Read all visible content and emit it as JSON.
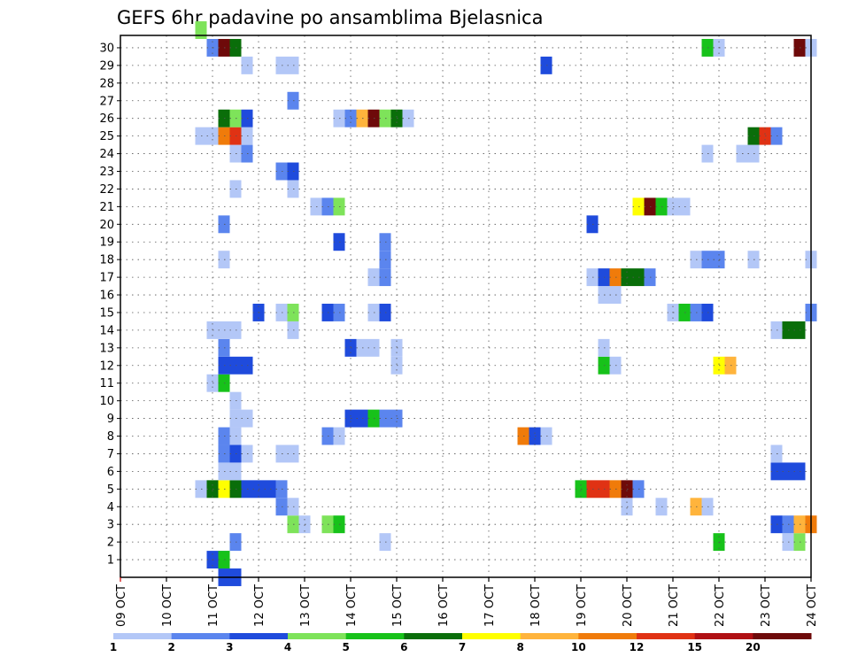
{
  "chart_data": {
    "type": "heatmap",
    "title": "GEFS 6hr padavine po ansamblima Bjelasnica",
    "ylim": [
      0,
      30
    ],
    "y_ticks": [
      1,
      2,
      3,
      4,
      5,
      6,
      7,
      8,
      9,
      10,
      11,
      12,
      13,
      14,
      15,
      16,
      17,
      18,
      19,
      20,
      21,
      22,
      23,
      24,
      25,
      26,
      27,
      28,
      29,
      30
    ],
    "x_ticks": [
      "09 OCT",
      "10 OCT",
      "11 OCT",
      "12 OCT",
      "13 OCT",
      "14 OCT",
      "15 OCT",
      "16 OCT",
      "17 OCT",
      "18 OCT",
      "19 OCT",
      "20 OCT",
      "21 OCT",
      "22 OCT",
      "23 OCT",
      "24 OCT"
    ],
    "x_step_days": 0.25,
    "grid": true,
    "colorbar": {
      "labels": [
        "1",
        "2",
        "3",
        "4",
        "5",
        "6",
        "7",
        "8",
        "10",
        "12",
        "15",
        "20"
      ],
      "colors": [
        "#b3c7f7",
        "#5b85ee",
        "#1f4bdc",
        "#7ee35a",
        "#17c21a",
        "#0a6e0a",
        "#ffff00",
        "#ffb43c",
        "#f07b0a",
        "#e03214",
        "#b01014",
        "#6e0a0a"
      ]
    },
    "cells": [
      {
        "day": 11.25,
        "member": 0,
        "level": 2
      },
      {
        "day": 11.5,
        "member": 0,
        "level": 2
      },
      {
        "day": 11.25,
        "member": 1,
        "level": 1
      },
      {
        "day": 11.0,
        "member": 1,
        "level": 2
      },
      {
        "day": 11.25,
        "member": 1,
        "level": 4
      },
      {
        "day": 11.5,
        "member": 2,
        "level": 1
      },
      {
        "day": 14.75,
        "member": 2,
        "level": 0
      },
      {
        "day": 22.0,
        "member": 2,
        "level": 4
      },
      {
        "day": 23.5,
        "member": 2,
        "level": 0
      },
      {
        "day": 23.75,
        "member": 2,
        "level": 3
      },
      {
        "day": 12.75,
        "member": 3,
        "level": 3
      },
      {
        "day": 13.0,
        "member": 3,
        "level": 0
      },
      {
        "day": 13.5,
        "member": 3,
        "level": 3
      },
      {
        "day": 13.75,
        "member": 3,
        "level": 4
      },
      {
        "day": 23.25,
        "member": 3,
        "level": 2
      },
      {
        "day": 23.5,
        "member": 3,
        "level": 1
      },
      {
        "day": 23.75,
        "member": 3,
        "level": 7
      },
      {
        "day": 24.0,
        "member": 3,
        "level": 8
      },
      {
        "day": 12.5,
        "member": 4,
        "level": 1
      },
      {
        "day": 12.75,
        "member": 4,
        "level": 0
      },
      {
        "day": 20.0,
        "member": 4,
        "level": 0
      },
      {
        "day": 20.75,
        "member": 4,
        "level": 0
      },
      {
        "day": 21.5,
        "member": 4,
        "level": 7
      },
      {
        "day": 21.75,
        "member": 4,
        "level": 0
      },
      {
        "day": 10.75,
        "member": 5,
        "level": 0
      },
      {
        "day": 11.0,
        "member": 5,
        "level": 5
      },
      {
        "day": 11.25,
        "member": 5,
        "level": 6
      },
      {
        "day": 11.5,
        "member": 5,
        "level": 5
      },
      {
        "day": 11.75,
        "member": 5,
        "level": 2
      },
      {
        "day": 12.0,
        "member": 5,
        "level": 2
      },
      {
        "day": 12.25,
        "member": 5,
        "level": 2
      },
      {
        "day": 12.5,
        "member": 5,
        "level": 1
      },
      {
        "day": 19.0,
        "member": 5,
        "level": 4
      },
      {
        "day": 19.25,
        "member": 5,
        "level": 9
      },
      {
        "day": 19.5,
        "member": 5,
        "level": 9
      },
      {
        "day": 19.75,
        "member": 5,
        "level": 8
      },
      {
        "day": 20.0,
        "member": 5,
        "level": 11
      },
      {
        "day": 20.25,
        "member": 5,
        "level": 1
      },
      {
        "day": 11.25,
        "member": 6,
        "level": 0
      },
      {
        "day": 11.5,
        "member": 6,
        "level": 0
      },
      {
        "day": 23.25,
        "member": 6,
        "level": 2
      },
      {
        "day": 23.5,
        "member": 6,
        "level": 2
      },
      {
        "day": 23.75,
        "member": 6,
        "level": 2
      },
      {
        "day": 11.25,
        "member": 7,
        "level": 1
      },
      {
        "day": 11.5,
        "member": 7,
        "level": 2
      },
      {
        "day": 11.75,
        "member": 7,
        "level": 0
      },
      {
        "day": 12.5,
        "member": 7,
        "level": 0
      },
      {
        "day": 12.75,
        "member": 7,
        "level": 0
      },
      {
        "day": 23.25,
        "member": 7,
        "level": 0
      },
      {
        "day": 11.25,
        "member": 8,
        "level": 1
      },
      {
        "day": 11.5,
        "member": 8,
        "level": 0
      },
      {
        "day": 13.5,
        "member": 8,
        "level": 1
      },
      {
        "day": 13.75,
        "member": 8,
        "level": 0
      },
      {
        "day": 17.75,
        "member": 8,
        "level": 8
      },
      {
        "day": 18.0,
        "member": 8,
        "level": 2
      },
      {
        "day": 18.25,
        "member": 8,
        "level": 0
      },
      {
        "day": 11.5,
        "member": 9,
        "level": 0
      },
      {
        "day": 11.75,
        "member": 9,
        "level": 0
      },
      {
        "day": 14.0,
        "member": 9,
        "level": 2
      },
      {
        "day": 14.25,
        "member": 9,
        "level": 2
      },
      {
        "day": 14.5,
        "member": 9,
        "level": 4
      },
      {
        "day": 14.75,
        "member": 9,
        "level": 1
      },
      {
        "day": 15.0,
        "member": 9,
        "level": 1
      },
      {
        "day": 11.5,
        "member": 10,
        "level": 0
      },
      {
        "day": 11.0,
        "member": 11,
        "level": 0
      },
      {
        "day": 11.25,
        "member": 11,
        "level": 4
      },
      {
        "day": 11.25,
        "member": 12,
        "level": 2
      },
      {
        "day": 11.5,
        "member": 12,
        "level": 2
      },
      {
        "day": 11.75,
        "member": 12,
        "level": 2
      },
      {
        "day": 15.0,
        "member": 12,
        "level": 0
      },
      {
        "day": 19.5,
        "member": 12,
        "level": 4
      },
      {
        "day": 19.75,
        "member": 12,
        "level": 0
      },
      {
        "day": 22.0,
        "member": 12,
        "level": 6
      },
      {
        "day": 22.25,
        "member": 12,
        "level": 7
      },
      {
        "day": 11.25,
        "member": 13,
        "level": 1
      },
      {
        "day": 14.0,
        "member": 13,
        "level": 2
      },
      {
        "day": 14.25,
        "member": 13,
        "level": 0
      },
      {
        "day": 14.5,
        "member": 13,
        "level": 0
      },
      {
        "day": 15.0,
        "member": 13,
        "level": 0
      },
      {
        "day": 19.5,
        "member": 13,
        "level": 0
      },
      {
        "day": 11.0,
        "member": 14,
        "level": 0
      },
      {
        "day": 11.25,
        "member": 14,
        "level": 0
      },
      {
        "day": 11.5,
        "member": 14,
        "level": 0
      },
      {
        "day": 12.75,
        "member": 14,
        "level": 0
      },
      {
        "day": 23.25,
        "member": 14,
        "level": 0
      },
      {
        "day": 23.5,
        "member": 14,
        "level": 5
      },
      {
        "day": 23.75,
        "member": 14,
        "level": 5
      },
      {
        "day": 12.0,
        "member": 15,
        "level": 2
      },
      {
        "day": 12.5,
        "member": 15,
        "level": 0
      },
      {
        "day": 12.75,
        "member": 15,
        "level": 3
      },
      {
        "day": 13.5,
        "member": 15,
        "level": 2
      },
      {
        "day": 13.75,
        "member": 15,
        "level": 1
      },
      {
        "day": 14.5,
        "member": 15,
        "level": 0
      },
      {
        "day": 14.75,
        "member": 15,
        "level": 2
      },
      {
        "day": 21.0,
        "member": 15,
        "level": 0
      },
      {
        "day": 21.25,
        "member": 15,
        "level": 4
      },
      {
        "day": 21.5,
        "member": 15,
        "level": 1
      },
      {
        "day": 21.75,
        "member": 15,
        "level": 2
      },
      {
        "day": 24.0,
        "member": 15,
        "level": 1
      },
      {
        "day": 19.5,
        "member": 16,
        "level": 0
      },
      {
        "day": 19.75,
        "member": 16,
        "level": 0
      },
      {
        "day": 14.5,
        "member": 17,
        "level": 0
      },
      {
        "day": 14.75,
        "member": 17,
        "level": 1
      },
      {
        "day": 19.25,
        "member": 17,
        "level": 0
      },
      {
        "day": 19.5,
        "member": 17,
        "level": 2
      },
      {
        "day": 19.75,
        "member": 17,
        "level": 8
      },
      {
        "day": 20.0,
        "member": 17,
        "level": 5
      },
      {
        "day": 20.25,
        "member": 17,
        "level": 5
      },
      {
        "day": 20.5,
        "member": 17,
        "level": 1
      },
      {
        "day": 11.25,
        "member": 18,
        "level": 0
      },
      {
        "day": 14.75,
        "member": 18,
        "level": 1
      },
      {
        "day": 21.5,
        "member": 18,
        "level": 0
      },
      {
        "day": 21.75,
        "member": 18,
        "level": 1
      },
      {
        "day": 22.0,
        "member": 18,
        "level": 1
      },
      {
        "day": 22.75,
        "member": 18,
        "level": 0
      },
      {
        "day": 24.0,
        "member": 18,
        "level": 0
      },
      {
        "day": 13.75,
        "member": 19,
        "level": 2
      },
      {
        "day": 14.75,
        "member": 19,
        "level": 1
      },
      {
        "day": 11.25,
        "member": 20,
        "level": 1
      },
      {
        "day": 19.25,
        "member": 20,
        "level": 2
      },
      {
        "day": 13.25,
        "member": 21,
        "level": 0
      },
      {
        "day": 13.5,
        "member": 21,
        "level": 1
      },
      {
        "day": 13.75,
        "member": 21,
        "level": 3
      },
      {
        "day": 20.25,
        "member": 21,
        "level": 6
      },
      {
        "day": 20.5,
        "member": 21,
        "level": 11
      },
      {
        "day": 20.75,
        "member": 21,
        "level": 4
      },
      {
        "day": 21.0,
        "member": 21,
        "level": 0
      },
      {
        "day": 21.25,
        "member": 21,
        "level": 0
      },
      {
        "day": 11.5,
        "member": 22,
        "level": 0
      },
      {
        "day": 12.75,
        "member": 22,
        "level": 0
      },
      {
        "day": 12.5,
        "member": 23,
        "level": 1
      },
      {
        "day": 12.75,
        "member": 23,
        "level": 2
      },
      {
        "day": 11.5,
        "member": 24,
        "level": 0
      },
      {
        "day": 11.75,
        "member": 24,
        "level": 1
      },
      {
        "day": 21.75,
        "member": 24,
        "level": 0
      },
      {
        "day": 22.5,
        "member": 24,
        "level": 0
      },
      {
        "day": 22.75,
        "member": 24,
        "level": 0
      },
      {
        "day": 10.75,
        "member": 25,
        "level": 0
      },
      {
        "day": 11.0,
        "member": 25,
        "level": 0
      },
      {
        "day": 11.25,
        "member": 25,
        "level": 8
      },
      {
        "day": 11.5,
        "member": 25,
        "level": 9
      },
      {
        "day": 11.75,
        "member": 25,
        "level": 0
      },
      {
        "day": 22.75,
        "member": 25,
        "level": 5
      },
      {
        "day": 23.0,
        "member": 25,
        "level": 9
      },
      {
        "day": 23.25,
        "member": 25,
        "level": 1
      },
      {
        "day": 11.25,
        "member": 26,
        "level": 5
      },
      {
        "day": 11.5,
        "member": 26,
        "level": 3
      },
      {
        "day": 11.75,
        "member": 26,
        "level": 2
      },
      {
        "day": 13.75,
        "member": 26,
        "level": 0
      },
      {
        "day": 14.0,
        "member": 26,
        "level": 1
      },
      {
        "day": 14.25,
        "member": 26,
        "level": 7
      },
      {
        "day": 14.5,
        "member": 26,
        "level": 11
      },
      {
        "day": 14.75,
        "member": 26,
        "level": 3
      },
      {
        "day": 15.0,
        "member": 26,
        "level": 5
      },
      {
        "day": 15.25,
        "member": 26,
        "level": 0
      },
      {
        "day": 12.75,
        "member": 27,
        "level": 1
      },
      {
        "day": 18.25,
        "member": 29,
        "level": 2
      },
      {
        "day": 11.75,
        "member": 29,
        "level": 0
      },
      {
        "day": 12.5,
        "member": 29,
        "level": 0
      },
      {
        "day": 12.75,
        "member": 29,
        "level": 0
      },
      {
        "day": 11.0,
        "member": 30,
        "level": 1
      },
      {
        "day": 11.25,
        "member": 30,
        "level": 11
      },
      {
        "day": 11.5,
        "member": 30,
        "level": 5
      },
      {
        "day": 21.75,
        "member": 30,
        "level": 4
      },
      {
        "day": 22.0,
        "member": 30,
        "level": 0
      },
      {
        "day": 23.75,
        "member": 30,
        "level": 11
      },
      {
        "day": 24.0,
        "member": 30,
        "level": 0
      },
      {
        "day": 10.75,
        "member": 31,
        "level": 3
      }
    ]
  }
}
